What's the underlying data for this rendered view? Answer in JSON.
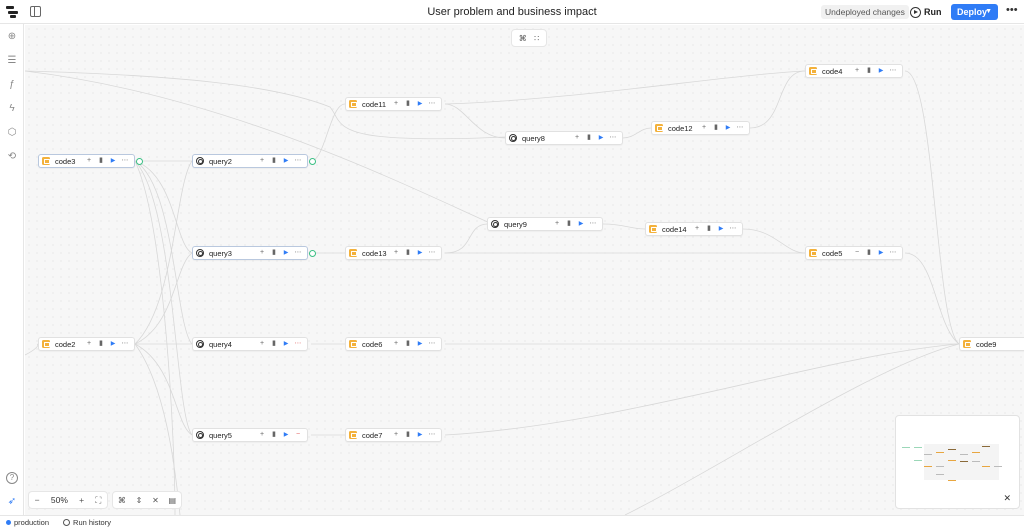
{
  "header": {
    "title": "User problem and business impact",
    "status_badge": "Undeployed changes",
    "run_label": "Run",
    "deploy_label": "Deploy",
    "more_label": "•••"
  },
  "rail": {
    "items": [
      {
        "icon": "add-circle-icon",
        "glyph": "⊕"
      },
      {
        "icon": "list-icon",
        "glyph": "☰"
      },
      {
        "icon": "function-icon",
        "glyph": "ƒ"
      },
      {
        "icon": "lightning-icon",
        "glyph": "ϟ"
      },
      {
        "icon": "cube-icon",
        "glyph": "⬡"
      },
      {
        "icon": "history-icon",
        "glyph": "⟲"
      }
    ],
    "help_glyph": "?",
    "rocket_glyph": "➶"
  },
  "nodes": [
    {
      "id": "code3",
      "label": "code3",
      "kind": "code",
      "selected": true
    },
    {
      "id": "query2",
      "label": "query2",
      "kind": "query",
      "selected": true
    },
    {
      "id": "code11",
      "label": "code11",
      "kind": "code"
    },
    {
      "id": "query8",
      "label": "query8",
      "kind": "query"
    },
    {
      "id": "code12",
      "label": "code12",
      "kind": "code"
    },
    {
      "id": "code4",
      "label": "code4",
      "kind": "code"
    },
    {
      "id": "query9",
      "label": "query9",
      "kind": "query"
    },
    {
      "id": "code14",
      "label": "code14",
      "kind": "code"
    },
    {
      "id": "query3",
      "label": "query3",
      "kind": "query",
      "selected": true
    },
    {
      "id": "code13",
      "label": "code13",
      "kind": "code"
    },
    {
      "id": "code5",
      "label": "code5",
      "kind": "code",
      "minus": true
    },
    {
      "id": "code2",
      "label": "code2",
      "kind": "code"
    },
    {
      "id": "query4",
      "label": "query4",
      "kind": "query",
      "fail": true
    },
    {
      "id": "code6",
      "label": "code6",
      "kind": "code"
    },
    {
      "id": "query5",
      "label": "query5",
      "kind": "query",
      "minus": true
    },
    {
      "id": "code7",
      "label": "code7",
      "kind": "code"
    },
    {
      "id": "code9",
      "label": "code9",
      "kind": "code"
    }
  ],
  "node_actions": {
    "add": "+",
    "remove": "−",
    "panel": "▮",
    "run": "▶",
    "more": "⋯"
  },
  "canvas_tools": {
    "graph_glyph": "⌘",
    "tree_glyph": "∷"
  },
  "zoom": {
    "minus": "−",
    "level": "50%",
    "plus": "+",
    "fit_glyph": "⛶"
  },
  "layout_tools": {
    "layout_glyph": "⌘",
    "expand_glyph": "⇕",
    "collapse_glyph": "✕",
    "comment_glyph": "▤"
  },
  "minimap": {
    "close_glyph": "✕"
  },
  "status": {
    "environment": "production",
    "run_history": "Run history"
  },
  "colors": {
    "accent": "#2f7cf6",
    "code_icon": "#f3b13b",
    "port": "#3bbf84"
  }
}
